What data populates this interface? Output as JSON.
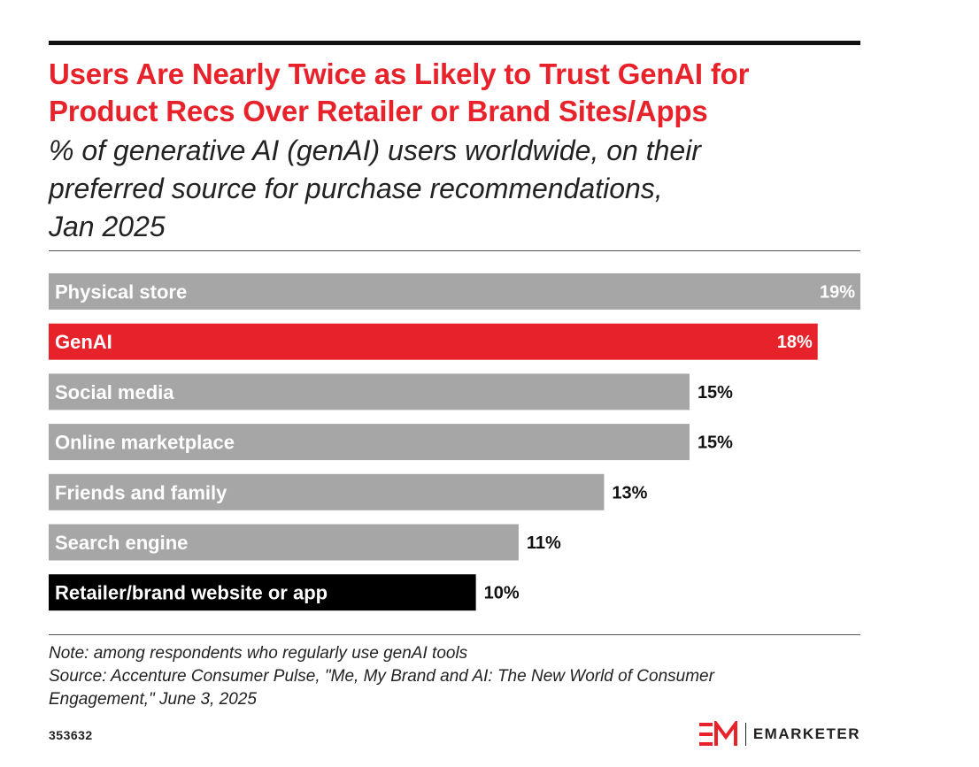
{
  "header": {
    "title_line1": "Users Are Nearly Twice as Likely to Trust GenAI for",
    "title_line2": "Product Recs Over Retailer or Brand Sites/Apps",
    "subtitle_line1": "% of generative AI (genAI) users worldwide, on their",
    "subtitle_line2": "preferred source for purchase recommendations,",
    "subtitle_line3": "Jan 2025"
  },
  "chart_data": {
    "type": "bar",
    "orientation": "horizontal",
    "categories": [
      "Physical store",
      "GenAI",
      "Social media",
      "Online marketplace",
      "Friends and family",
      "Search engine",
      "Retailer/brand website or app"
    ],
    "values": [
      19,
      18,
      15,
      15,
      13,
      11,
      10
    ],
    "value_labels": [
      "19%",
      "18%",
      "15%",
      "15%",
      "13%",
      "11%",
      "10%"
    ],
    "bar_colors": [
      "#a6a6a6",
      "#e8222a",
      "#a6a6a6",
      "#a6a6a6",
      "#a6a6a6",
      "#a6a6a6",
      "#000000"
    ],
    "xlim": [
      0,
      19
    ],
    "grid": false,
    "legend": "none"
  },
  "footer": {
    "note": "Note: among respondents who regularly use genAI tools",
    "source_line1": "Source: Accenture Consumer Pulse, \"Me, My Brand and AI: The New World of Consumer",
    "source_line2": "Engagement,\" June 3, 2025",
    "chart_id": "353632",
    "brand": "EMARKETER"
  },
  "colors": {
    "accent": "#e8222a",
    "gray_bar": "#a6a6a6",
    "dark_bar": "#000000"
  }
}
